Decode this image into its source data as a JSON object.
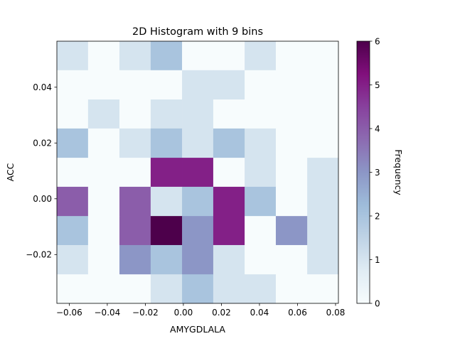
{
  "chart_data": {
    "type": "heatmap",
    "title": "2D Histogram with 9 bins",
    "xlabel": "AMYGDLALA",
    "ylabel": "ACC",
    "colorbar_label": "Frequency",
    "colormap": "BuPu",
    "colormap_stops": [
      "#f7fcfd",
      "#e0ecf4",
      "#bfd3e6",
      "#9ebcda",
      "#8c96c6",
      "#8c6bb1",
      "#88419d",
      "#810f7c",
      "#4d004b"
    ],
    "vmin": 0,
    "vmax": 6,
    "xlim": [
      -0.0665,
      0.0815
    ],
    "ylim": [
      -0.0375,
      0.0565
    ],
    "x_edges": [
      -0.0665,
      -0.0501,
      -0.0336,
      -0.0172,
      -0.0007,
      0.0157,
      0.0322,
      0.0486,
      0.0651,
      0.0815
    ],
    "y_edges": [
      -0.0375,
      -0.0271,
      -0.0166,
      -0.0062,
      0.0043,
      0.0147,
      0.0252,
      0.0356,
      0.0461,
      0.0565
    ],
    "counts_top_to_bottom": [
      [
        1,
        0,
        1,
        2,
        0,
        0,
        1,
        0,
        0
      ],
      [
        0,
        0,
        0,
        0,
        1,
        1,
        0,
        0,
        0
      ],
      [
        0,
        1,
        0,
        1,
        1,
        0,
        0,
        0,
        0
      ],
      [
        2,
        0,
        1,
        2,
        1,
        2,
        1,
        0,
        0
      ],
      [
        0,
        0,
        0,
        5,
        5,
        0,
        1,
        0,
        1
      ],
      [
        4,
        0,
        4,
        1,
        2,
        5,
        2,
        0,
        1
      ],
      [
        2,
        0,
        4,
        6,
        3,
        5,
        0,
        3,
        1
      ],
      [
        1,
        0,
        3,
        2,
        3,
        1,
        0,
        0,
        1
      ],
      [
        0,
        0,
        0,
        1,
        2,
        1,
        1,
        0,
        0
      ]
    ],
    "x_ticks": [
      -0.06,
      -0.04,
      -0.02,
      0.0,
      0.02,
      0.04,
      0.06,
      0.08
    ],
    "x_tick_labels": [
      "−0.06",
      "−0.04",
      "−0.02",
      "0.00",
      "0.02",
      "0.04",
      "0.06",
      "0.08"
    ],
    "y_ticks": [
      -0.02,
      0.0,
      0.02,
      0.04
    ],
    "y_tick_labels": [
      "−0.02",
      "0.00",
      "0.02",
      "0.04"
    ],
    "colorbar_ticks": [
      0,
      1,
      2,
      3,
      4,
      5,
      6
    ],
    "colorbar_tick_labels": [
      "0",
      "1",
      "2",
      "3",
      "4",
      "5",
      "6"
    ],
    "grid": false,
    "legend": "none"
  }
}
